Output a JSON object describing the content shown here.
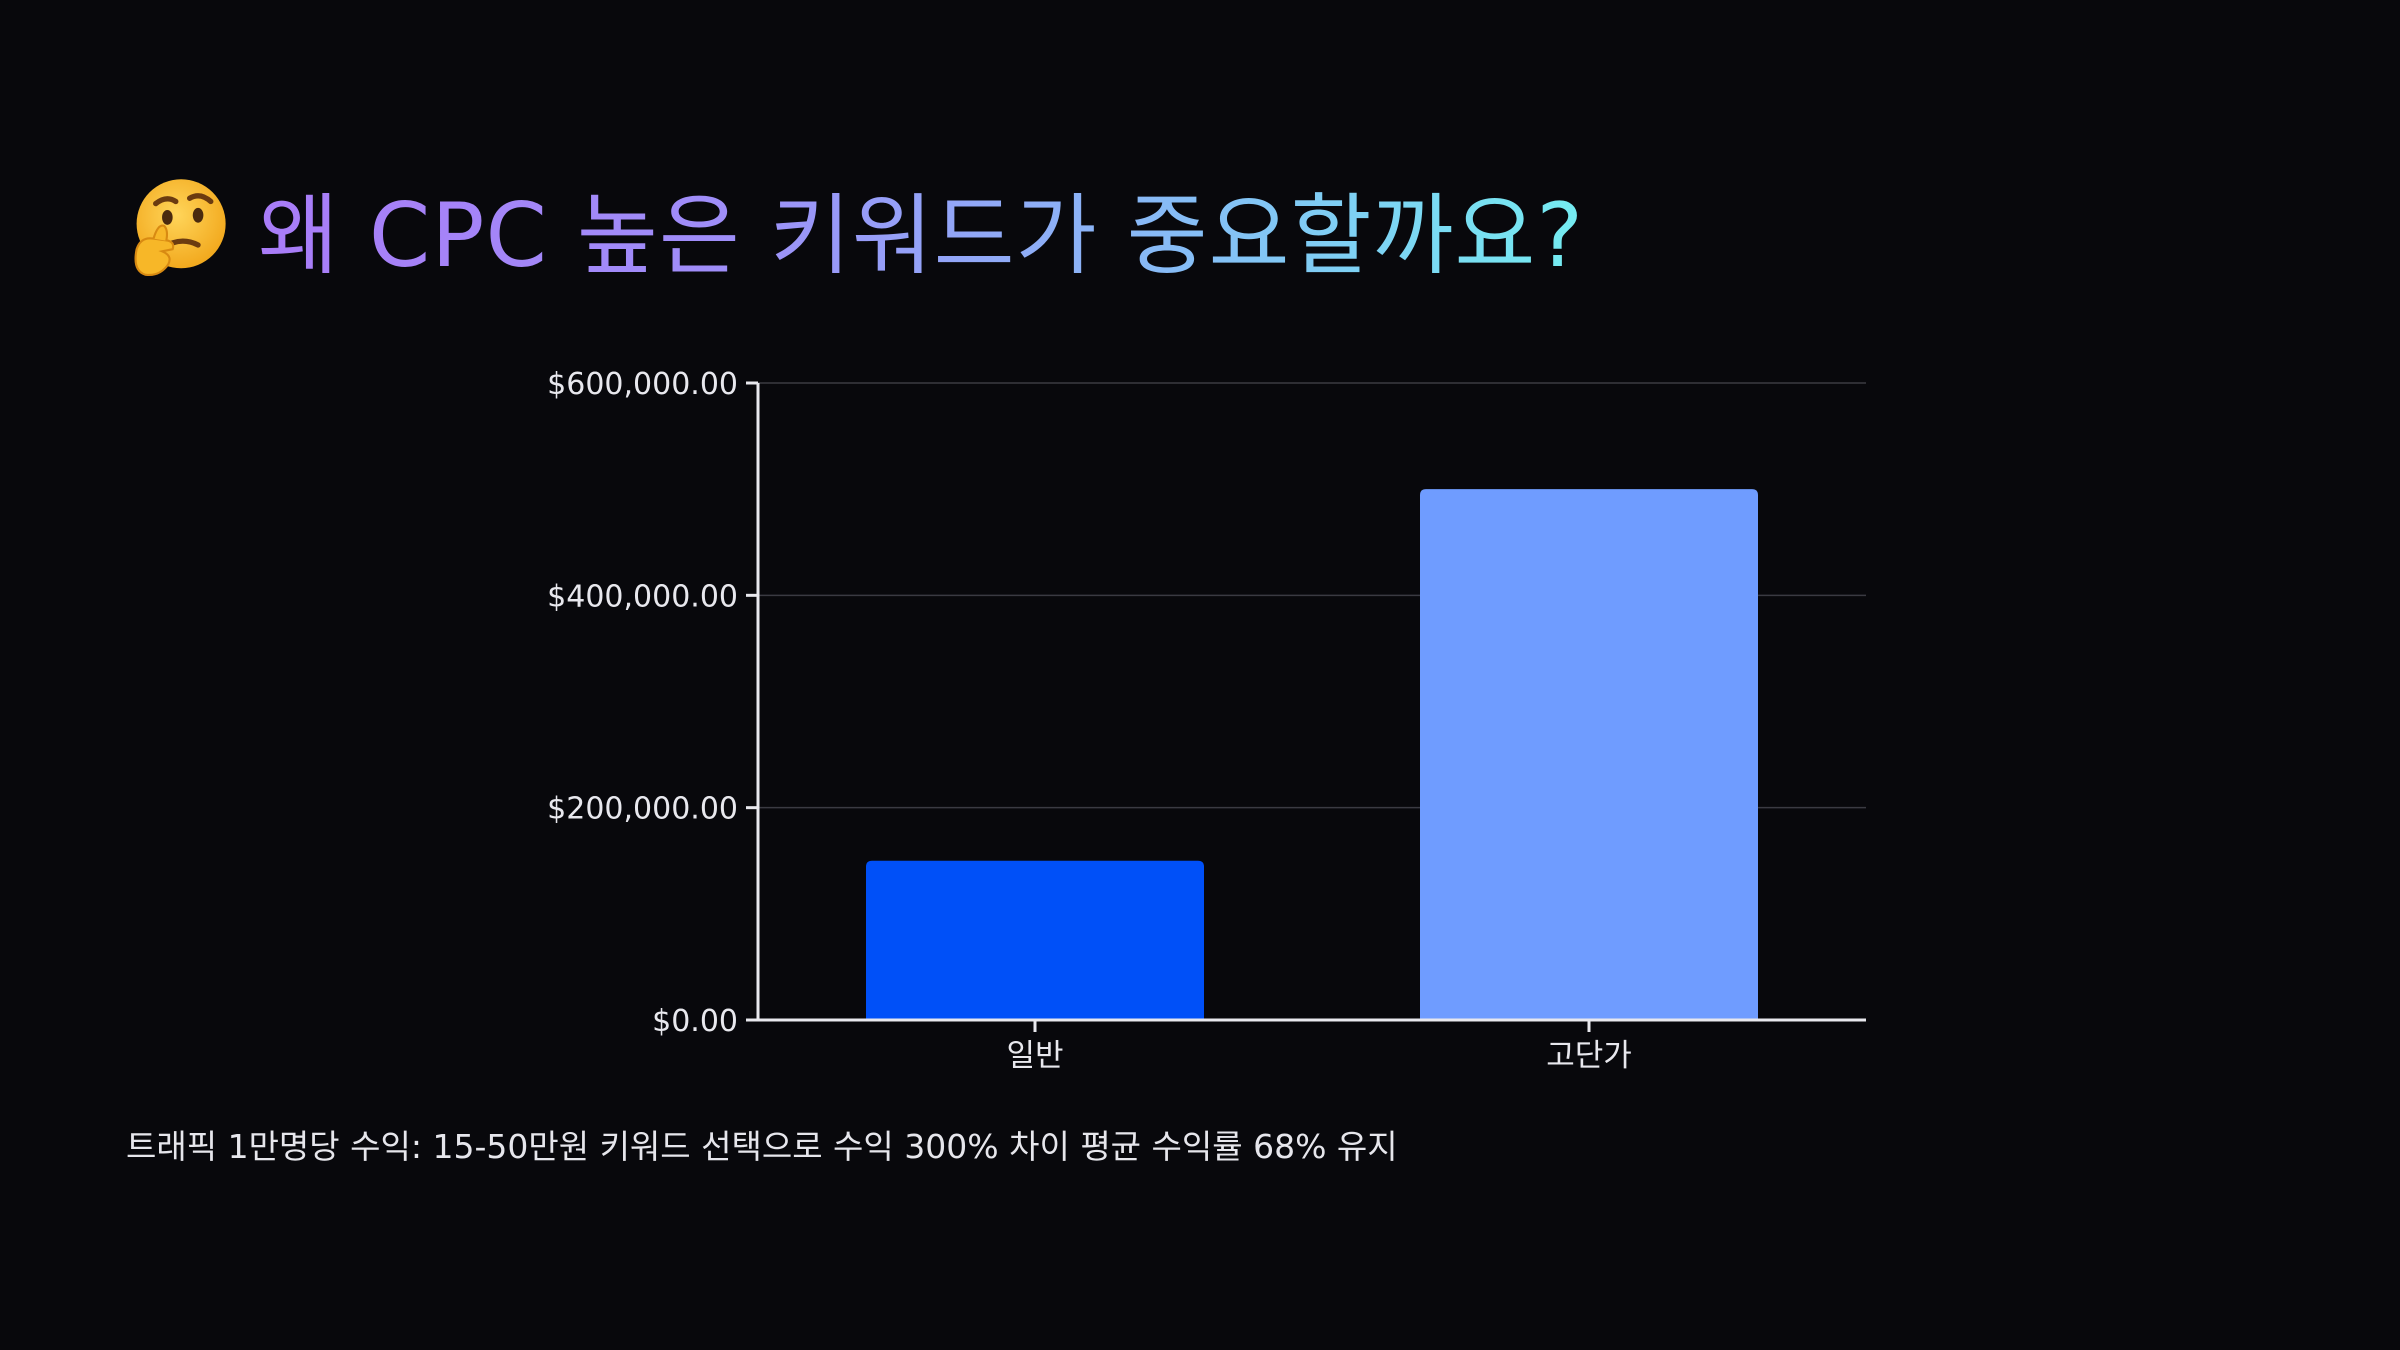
{
  "title": {
    "emoji": "thinking-face-icon",
    "text": "왜 CPC 높은 키워드가 중요할까요?",
    "gradient": [
      "#a97cf8",
      "#9f8ef9",
      "#86bdf6",
      "#74ecf1"
    ]
  },
  "chart_data": {
    "type": "bar",
    "categories": [
      "일반",
      "고단가"
    ],
    "values": [
      150000,
      500000
    ],
    "colors": [
      "#0050f8",
      "#6f9cff"
    ],
    "ylim": [
      0,
      600000
    ],
    "yticks": [
      0,
      200000,
      400000,
      600000
    ],
    "ytick_labels": [
      "$0.00",
      "$200,000.00",
      "$400,000.00",
      "$600,000.00"
    ],
    "title": "",
    "xlabel": "",
    "ylabel": "",
    "grid": true,
    "legend": "none"
  },
  "caption": "트래픽 1만명당 수익: 15-50만원 키워드 선택으로 수익 300% 차이 평균 수익률 68% 유지"
}
